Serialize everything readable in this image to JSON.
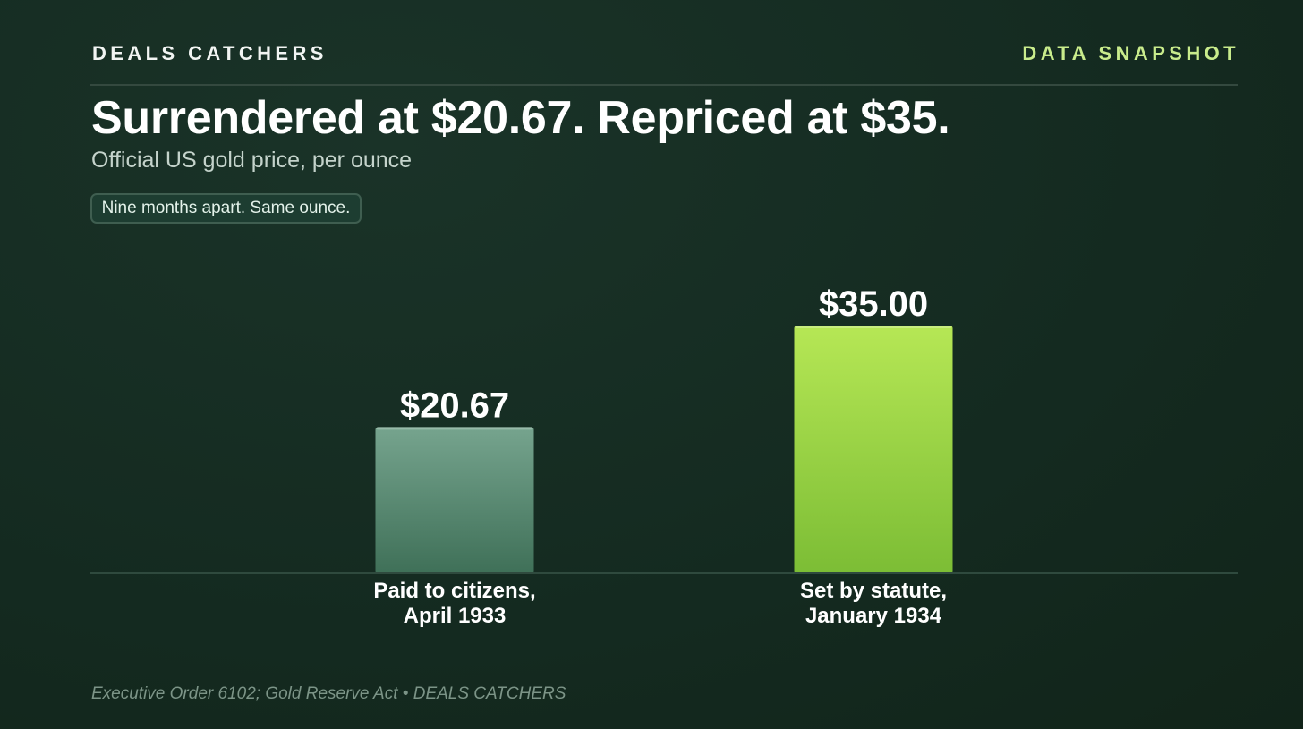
{
  "header": {
    "brand": "DEALS CATCHERS",
    "tag": "DATA SNAPSHOT"
  },
  "headline": "Surrendered at $20.67. Repriced at $35.",
  "subtitle": "Official US gold price, per ounce",
  "callout": "Nine months apart. Same ounce.",
  "footer": "Executive Order 6102; Gold Reserve Act • DEALS CATCHERS",
  "colors": {
    "background": "#142b21",
    "accent": "#c9ec8c",
    "bar_1933": "#5f9580",
    "bar_1934": "#9fd845"
  },
  "chart_data": {
    "type": "bar",
    "categories": [
      [
        "Paid to citizens,",
        "April 1933"
      ],
      [
        "Set by statute,",
        "January 1934"
      ]
    ],
    "values": [
      20.67,
      35.0
    ],
    "value_labels": [
      "$20.67",
      "$35.00"
    ],
    "title": "Surrendered at $20.67. Repriced at $35.",
    "subtitle": "Official US gold price, per ounce",
    "xlabel": "",
    "ylabel": "",
    "ylim": [
      0,
      35.0
    ],
    "grid": false
  }
}
